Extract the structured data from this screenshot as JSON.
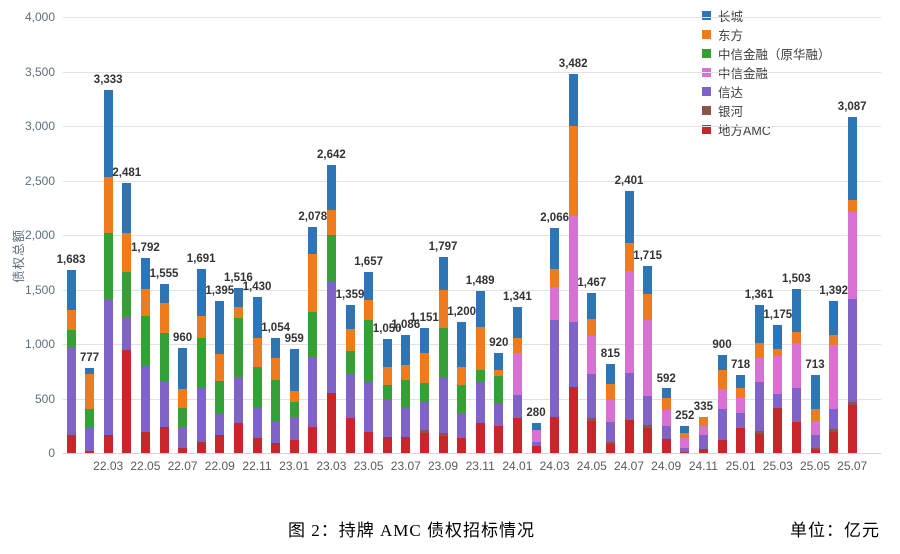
{
  "caption": {
    "title": "图 2：持牌 AMC 债权招标情况",
    "unit": "单位：亿元"
  },
  "chart_data": {
    "type": "bar",
    "stacked": true,
    "title": "图 2：持牌 AMC 债权招标情况",
    "unit_note": "单位：亿元",
    "ylabel": "债权总额",
    "ylim": [
      0,
      4000
    ],
    "ytick_step": 500,
    "grid": true,
    "legend_position": "top-right",
    "ytick_labels": [
      "0",
      "500",
      "1,000",
      "1,500",
      "2,000",
      "2,500",
      "3,000",
      "3,500",
      "4,000"
    ],
    "x_tick_labels": [
      "22.03",
      "22.05",
      "22.07",
      "22.09",
      "22.11",
      "23.01",
      "23.03",
      "23.05",
      "23.07",
      "23.09",
      "23.11",
      "24.01",
      "24.03",
      "24.05",
      "24.07",
      "24.09",
      "24.11",
      "25.01",
      "25.03",
      "25.05",
      "25.07"
    ],
    "series": [
      {
        "name": "长城",
        "color": "#2E75B6"
      },
      {
        "name": "东方",
        "color": "#EE7C1E"
      },
      {
        "name": "中信金融（原华融）",
        "color": "#35A035"
      },
      {
        "name": "中信金融",
        "color": "#D971D3"
      },
      {
        "name": "信达",
        "color": "#7F63C6"
      },
      {
        "name": "银河",
        "color": "#8B5449"
      },
      {
        "name": "地方AMC",
        "color": "#C9262B"
      }
    ],
    "values_order_bottom_to_top": [
      "地方AMC",
      "银河",
      "信达",
      "中信金融",
      "中信金融（原华融）",
      "东方",
      "长城"
    ],
    "bars": [
      {
        "month": "22.01",
        "total": 1683,
        "label": "1,683",
        "values": [
          165,
          0,
          808,
          0,
          160,
          183,
          367
        ]
      },
      {
        "month": "22.02",
        "total": 777,
        "label": "777",
        "values": [
          20,
          0,
          207,
          0,
          175,
          320,
          55
        ]
      },
      {
        "month": "22.03",
        "total": 3333,
        "label": "3,333",
        "values": [
          163,
          0,
          1240,
          0,
          615,
          515,
          800
        ]
      },
      {
        "month": "22.04",
        "total": 2481,
        "label": "2,481",
        "values": [
          949,
          0,
          303,
          0,
          412,
          358,
          459
        ]
      },
      {
        "month": "22.05",
        "total": 1792,
        "label": "1,792",
        "values": [
          190,
          0,
          612,
          0,
          458,
          248,
          284
        ]
      },
      {
        "month": "22.06",
        "total": 1555,
        "label": "1,555",
        "values": [
          240,
          0,
          410,
          0,
          455,
          270,
          180
        ]
      },
      {
        "month": "22.07",
        "total": 960,
        "label": "960",
        "values": [
          46,
          0,
          192,
          0,
          172,
          180,
          370
        ]
      },
      {
        "month": "22.08",
        "total": 1691,
        "label": "1,691",
        "values": [
          101,
          0,
          495,
          0,
          455,
          210,
          430
        ]
      },
      {
        "month": "22.09",
        "total": 1395,
        "label": "1,395",
        "values": [
          164,
          0,
          200,
          0,
          298,
          243,
          490
        ]
      },
      {
        "month": "22.10",
        "total": 1516,
        "label": "1,516",
        "values": [
          275,
          0,
          422,
          0,
          542,
          102,
          175
        ]
      },
      {
        "month": "22.11",
        "total": 1430,
        "label": "1,430",
        "values": [
          138,
          0,
          275,
          0,
          375,
          266,
          376
        ]
      },
      {
        "month": "22.12",
        "total": 1054,
        "label": "1,054",
        "values": [
          92,
          0,
          192,
          0,
          382,
          208,
          180
        ]
      },
      {
        "month": "23.01",
        "total": 959,
        "label": "959",
        "values": [
          119,
          0,
          210,
          0,
          136,
          108,
          386
        ]
      },
      {
        "month": "23.02",
        "total": 2078,
        "label": "2,078",
        "values": [
          239,
          0,
          642,
          0,
          410,
          537,
          250
        ]
      },
      {
        "month": "23.03",
        "total": 2642,
        "label": "2,642",
        "values": [
          550,
          0,
          1019,
          0,
          431,
          229,
          413
        ]
      },
      {
        "month": "23.04",
        "total": 1359,
        "label": "1,359",
        "values": [
          319,
          0,
          410,
          0,
          205,
          200,
          225
        ]
      },
      {
        "month": "23.05",
        "total": 1657,
        "label": "1,657",
        "values": [
          193,
          0,
          455,
          0,
          569,
          184,
          256
        ]
      },
      {
        "month": "23.06",
        "total": 1050,
        "label": "1,050",
        "values": [
          147,
          0,
          339,
          0,
          138,
          165,
          261
        ]
      },
      {
        "month": "23.07",
        "total": 1086,
        "label": "1,086",
        "values": [
          147,
          0,
          266,
          0,
          257,
          137,
          279
        ]
      },
      {
        "month": "23.08",
        "total": 1151,
        "label": "1,151",
        "values": [
          183,
          28,
          257,
          0,
          174,
          275,
          234
        ]
      },
      {
        "month": "23.09",
        "total": 1797,
        "label": "1,797",
        "values": [
          156,
          27,
          514,
          0,
          450,
          348,
          302
        ]
      },
      {
        "month": "23.10",
        "total": 1200,
        "label": "1,200",
        "values": [
          138,
          0,
          229,
          0,
          257,
          165,
          411
        ]
      },
      {
        "month": "23.11",
        "total": 1489,
        "label": "1,489",
        "values": [
          275,
          0,
          376,
          0,
          110,
          395,
          333
        ]
      },
      {
        "month": "23.12",
        "total": 920,
        "label": "920",
        "values": [
          249,
          0,
          198,
          0,
          258,
          60,
          155
        ]
      },
      {
        "month": "24.01",
        "total": 1341,
        "label": "1,341",
        "values": [
          322,
          0,
          211,
          385,
          0,
          138,
          285
        ]
      },
      {
        "month": "24.02",
        "total": 280,
        "label": "280",
        "values": [
          64,
          0,
          37,
          110,
          0,
          0,
          69
        ]
      },
      {
        "month": "24.03",
        "total": 2066,
        "label": "2,066",
        "values": [
          326,
          0,
          890,
          310,
          0,
          160,
          380
        ]
      },
      {
        "month": "24.04",
        "total": 3482,
        "label": "3,482",
        "values": [
          602,
          0,
          600,
          970,
          0,
          830,
          480
        ]
      },
      {
        "month": "24.05",
        "total": 1467,
        "label": "1,467",
        "values": [
          293,
          27,
          404,
          349,
          0,
          155,
          239
        ]
      },
      {
        "month": "24.06",
        "total": 815,
        "label": "815",
        "values": [
          83,
          20,
          180,
          200,
          0,
          152,
          180
        ]
      },
      {
        "month": "24.07",
        "total": 2401,
        "label": "2,401",
        "values": [
          303,
          0,
          428,
          936,
          0,
          257,
          477
        ]
      },
      {
        "month": "24.08",
        "total": 1715,
        "label": "1,715",
        "values": [
          227,
          27,
          271,
          695,
          0,
          235,
          260
        ]
      },
      {
        "month": "24.09",
        "total": 592,
        "label": "592",
        "values": [
          133,
          0,
          112,
          150,
          0,
          112,
          85
        ]
      },
      {
        "month": "24.10",
        "total": 252,
        "label": "252",
        "values": [
          12,
          0,
          35,
          90,
          0,
          45,
          70
        ]
      },
      {
        "month": "24.11",
        "total": 335,
        "label": "335",
        "values": [
          35,
          0,
          130,
          80,
          0,
          90,
          0
        ]
      },
      {
        "month": "24.12",
        "total": 900,
        "label": "900",
        "values": [
          116,
          0,
          286,
          188,
          0,
          170,
          140
        ]
      },
      {
        "month": "25.01",
        "total": 718,
        "label": "718",
        "values": [
          229,
          0,
          138,
          137,
          0,
          92,
          122
        ]
      },
      {
        "month": "25.02",
        "total": 1361,
        "label": "1,361",
        "values": [
          170,
          28,
          455,
          218,
          0,
          135,
          355
        ]
      },
      {
        "month": "25.03",
        "total": 1175,
        "label": "1,175",
        "values": [
          411,
          0,
          135,
          345,
          0,
          62,
          222
        ]
      },
      {
        "month": "25.04",
        "total": 1503,
        "label": "1,503",
        "values": [
          286,
          0,
          312,
          410,
          0,
          100,
          395
        ]
      },
      {
        "month": "25.05",
        "total": 713,
        "label": "713",
        "values": [
          28,
          20,
          115,
          135,
          0,
          105,
          310
        ]
      },
      {
        "month": "25.06",
        "total": 1392,
        "label": "1,392",
        "values": [
          193,
          30,
          180,
          585,
          0,
          99,
          305
        ]
      },
      {
        "month": "25.07",
        "total": 3087,
        "label": "3,087",
        "values": [
          437,
          27,
          945,
          800,
          0,
          108,
          770
        ]
      }
    ]
  }
}
